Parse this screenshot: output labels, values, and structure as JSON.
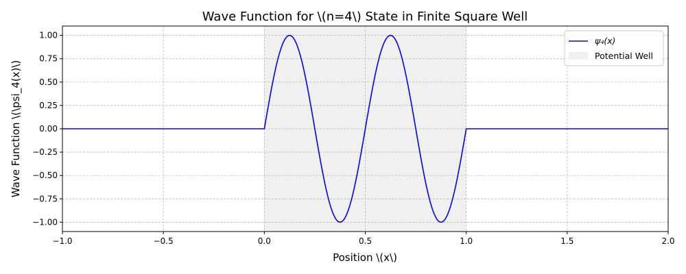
{
  "chart_data": {
    "type": "line",
    "title": "Wave Function for \\(n=4\\) State in Finite Square Well",
    "xlabel": "Position \\(x\\)",
    "ylabel": "Wave Function \\(\\psi_4(x)\\)",
    "xlim": [
      -1.0,
      2.0
    ],
    "ylim": [
      -1.1,
      1.1
    ],
    "x_ticks": [
      -1.0,
      -0.5,
      0.0,
      0.5,
      1.0,
      1.5,
      2.0
    ],
    "x_tick_labels": [
      "−1.0",
      "−0.5",
      "0.0",
      "0.5",
      "1.0",
      "1.5",
      "2.0"
    ],
    "y_ticks": [
      1.0,
      0.75,
      0.5,
      0.25,
      0.0,
      -0.25,
      -0.5,
      -0.75,
      -1.0
    ],
    "y_tick_labels": [
      "1.00",
      "0.75",
      "0.50",
      "0.25",
      "0.00",
      "−0.25",
      "−0.50",
      "−0.75",
      "−1.00"
    ],
    "grid": true,
    "legend_position": "top-right",
    "series": [
      {
        "name": "ψ₄(x)",
        "color": "#0000ff",
        "function": "sin(4*pi*x) for 0<=x<=1, else 0",
        "x": [
          -1.0,
          0.0,
          0.0625,
          0.125,
          0.1875,
          0.25,
          0.3125,
          0.375,
          0.4375,
          0.5,
          0.5625,
          0.625,
          0.6875,
          0.75,
          0.8125,
          0.875,
          0.9375,
          1.0,
          2.0
        ],
        "y": [
          0.0,
          0.0,
          0.707,
          1.0,
          0.707,
          0.0,
          -0.707,
          -1.0,
          -0.707,
          0.0,
          0.707,
          1.0,
          0.707,
          0.0,
          -0.707,
          -1.0,
          -0.707,
          0.0,
          0.0
        ]
      }
    ],
    "shaded_regions": [
      {
        "name": "Potential Well",
        "x_start": 0.0,
        "x_end": 1.0,
        "color": "#f0f0f0"
      }
    ]
  }
}
